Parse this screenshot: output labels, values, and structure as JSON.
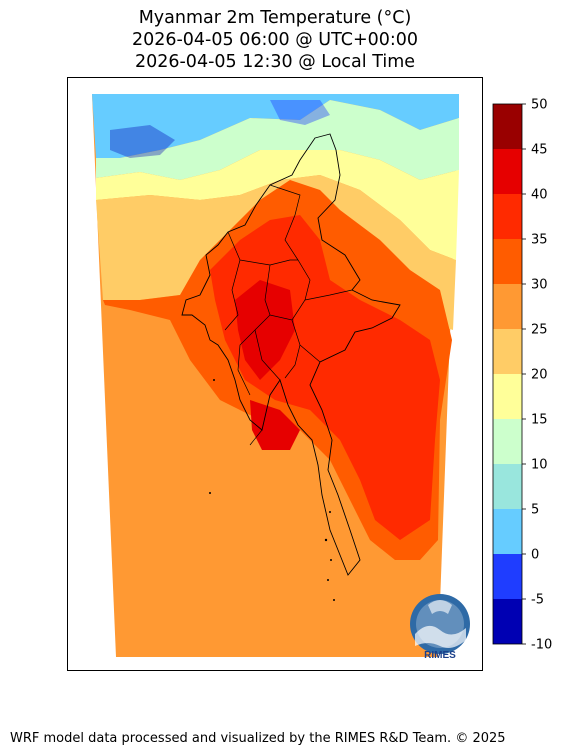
{
  "titles": {
    "line1": "Myanmar 2m Temperature (°C)",
    "line2": "2026-04-05 06:00 @ UTC+00:00",
    "line3": "2026-04-05 12:30 @ Local Time"
  },
  "colorbar": {
    "ticks": [
      "50",
      "45",
      "40",
      "35",
      "30",
      "25",
      "20",
      "15",
      "10",
      "5",
      "0",
      "-5",
      "-10"
    ],
    "colors": [
      "#990000",
      "#e60000",
      "#ff2a00",
      "#ff5c00",
      "#ff9933",
      "#ffcc66",
      "#ffff99",
      "#ccffcc",
      "#99e6dd",
      "#66ccff",
      "#1f3dff",
      "#0000b3"
    ]
  },
  "map_colors": {
    "sea": "#ff9933",
    "land_hot": "#ff5c00",
    "land_hotter": "#ff2a00",
    "land_hottest": "#e60000",
    "north_cold": "#66ccff",
    "north_cool": "#ccffcc",
    "north_mild": "#ffff99",
    "north_warm": "#ffcc66"
  },
  "logo": {
    "text": "RIMES"
  },
  "footer": "WRF model data processed and visualized by the RIMES R&D Team. © 2025"
}
